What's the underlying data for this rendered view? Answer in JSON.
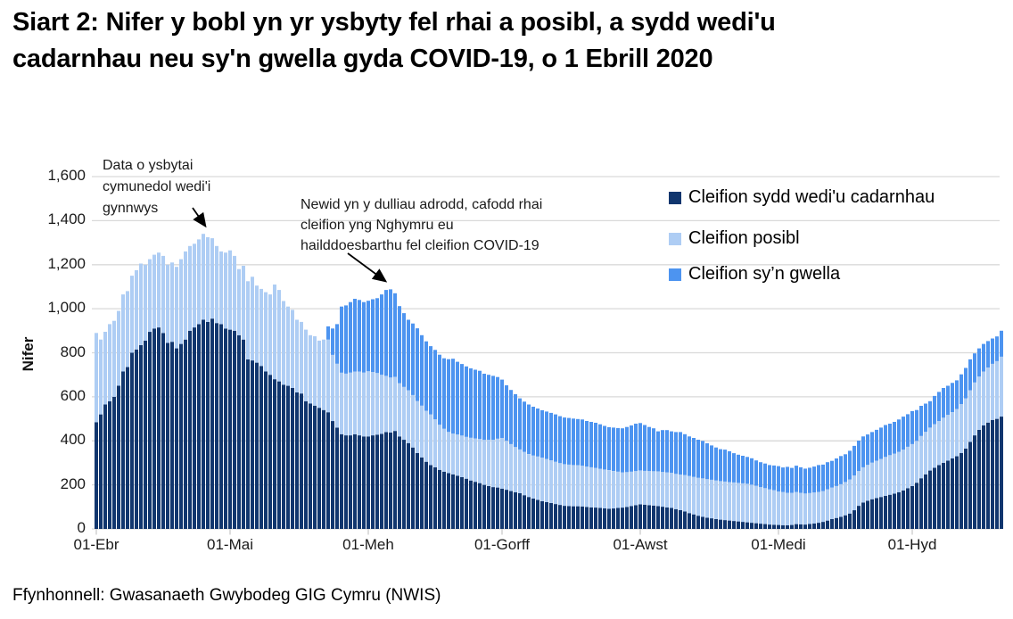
{
  "title": "Siart 2: Nifer y bobl yn yr ysbyty fel rhai a posibl, a sydd wedi'u cadarnhau neu sy'n gwella gyda COVID-19, o 1 Ebrill 2020",
  "y_axis_label": "Nifer",
  "source": "Ffynhonnell: Gwasanaeth Gwybodeg GIG Cymru (NWIS)",
  "annotations": {
    "community_hospitals": {
      "lines": [
        "Data o ysbytai",
        "cymunedol wedi'i",
        "gynnwys"
      ]
    },
    "reporting_change": {
      "lines": [
        "Newid yn y dulliau adrodd, cafodd rhai",
        "cleifion yng Nghymru eu",
        "hailddoesbarthu fel cleifion COVID-19"
      ]
    }
  },
  "chart_data": {
    "type": "bar",
    "stacked": true,
    "start_date": "01 Ebrill 2020",
    "end_date": "21 Hydref 2020",
    "x_unit": "diwrnod (daily bars)",
    "ylim": [
      0,
      1600
    ],
    "grid": "horizontal",
    "legend_position": "top-right-inside",
    "y_ticks": [
      "0",
      "200",
      "400",
      "600",
      "800",
      "1,000",
      "1,200",
      "1,400",
      "1,600"
    ],
    "x_tick_labels": [
      "01-Ebr",
      "01-Mai",
      "01-Meh",
      "01-Gorff",
      "01-Awst",
      "01-Medi",
      "01-Hyd"
    ],
    "x_tick_day_index": [
      0,
      30,
      61,
      91,
      122,
      153,
      183
    ],
    "colors": {
      "grid": "#D9D9D9",
      "tick": "#C6C6C6",
      "annotation_arrow": "#000000"
    },
    "series": [
      {
        "name": "Cleifion sydd wedi'u cadarnhau",
        "color": "#11366E",
        "values": [
          485,
          520,
          565,
          580,
          600,
          650,
          715,
          735,
          800,
          815,
          835,
          855,
          895,
          910,
          915,
          890,
          845,
          850,
          820,
          840,
          860,
          900,
          915,
          930,
          950,
          940,
          955,
          935,
          930,
          910,
          905,
          900,
          880,
          860,
          770,
          765,
          755,
          740,
          715,
          700,
          680,
          670,
          655,
          650,
          640,
          620,
          615,
          580,
          570,
          560,
          550,
          540,
          530,
          490,
          460,
          430,
          425,
          425,
          430,
          425,
          420,
          420,
          425,
          428,
          432,
          440,
          438,
          445,
          420,
          405,
          390,
          370,
          345,
          325,
          305,
          290,
          280,
          268,
          260,
          253,
          248,
          242,
          235,
          228,
          220,
          214,
          208,
          200,
          195,
          190,
          188,
          183,
          178,
          172,
          167,
          162,
          153,
          145,
          138,
          132,
          126,
          122,
          118,
          113,
          109,
          105,
          104,
          103,
          103,
          102,
          100,
          98,
          97,
          95,
          93,
          92,
          93,
          95,
          97,
          100,
          104,
          108,
          112,
          110,
          108,
          106,
          104,
          101,
          98,
          95,
          90,
          85,
          79,
          72,
          66,
          60,
          55,
          51,
          48,
          45,
          42,
          40,
          38,
          36,
          34,
          32,
          30,
          28,
          26,
          24,
          22,
          20,
          19,
          18,
          17,
          16,
          18,
          22,
          21,
          20,
          23,
          25,
          28,
          32,
          38,
          45,
          50,
          55,
          62,
          70,
          85,
          105,
          120,
          128,
          135,
          140,
          145,
          150,
          155,
          160,
          167,
          175,
          185,
          195,
          210,
          230,
          248,
          265,
          278,
          290,
          300,
          310,
          320,
          330,
          345,
          365,
          395,
          425,
          450,
          470,
          483,
          495,
          500,
          510
        ]
      },
      {
        "name": "Cleifion posibl",
        "color": "#AECDF4",
        "values": [
          405,
          340,
          330,
          350,
          345,
          340,
          350,
          345,
          350,
          360,
          370,
          345,
          330,
          335,
          340,
          350,
          355,
          360,
          370,
          385,
          400,
          385,
          380,
          385,
          390,
          385,
          365,
          350,
          330,
          345,
          360,
          340,
          300,
          335,
          355,
          380,
          350,
          350,
          360,
          365,
          430,
          415,
          380,
          360,
          355,
          330,
          325,
          325,
          310,
          315,
          305,
          320,
          330,
          300,
          290,
          280,
          280,
          285,
          285,
          290,
          290,
          296,
          288,
          280,
          268,
          255,
          250,
          245,
          242,
          240,
          240,
          238,
          236,
          235,
          232,
          230,
          218,
          205,
          195,
          188,
          185,
          187,
          189,
          190,
          194,
          197,
          200,
          205,
          210,
          215,
          222,
          230,
          222,
          213,
          205,
          199,
          197,
          195,
          196,
          197,
          198,
          196,
          194,
          192,
          190,
          189,
          188,
          187,
          186,
          185,
          183,
          182,
          180,
          178,
          177,
          175,
          170,
          165,
          160,
          158,
          156,
          155,
          154,
          154,
          155,
          156,
          157,
          158,
          159,
          160,
          160,
          162,
          165,
          168,
          170,
          172,
          175,
          175,
          175,
          175,
          175,
          175,
          175,
          175,
          175,
          175,
          175,
          173,
          170,
          166,
          163,
          160,
          157,
          152,
          150,
          148,
          146,
          145,
          143,
          141,
          140,
          140,
          140,
          140,
          142,
          143,
          145,
          148,
          151,
          155,
          157,
          158,
          160,
          163,
          166,
          170,
          173,
          177,
          180,
          182,
          183,
          185,
          188,
          190,
          190,
          192,
          193,
          195,
          198,
          200,
          205,
          208,
          210,
          215,
          222,
          228,
          235,
          240,
          242,
          245,
          250,
          255,
          262,
          272
        ]
      },
      {
        "name": "Cleifion sy’n gwella",
        "color": "#4D94F0",
        "values": [
          0,
          0,
          0,
          0,
          0,
          0,
          0,
          0,
          0,
          0,
          0,
          0,
          0,
          0,
          0,
          0,
          0,
          0,
          0,
          0,
          0,
          0,
          0,
          0,
          0,
          0,
          0,
          0,
          0,
          0,
          0,
          0,
          0,
          0,
          0,
          0,
          0,
          0,
          0,
          0,
          0,
          0,
          0,
          0,
          0,
          0,
          0,
          0,
          0,
          0,
          0,
          0,
          60,
          120,
          180,
          300,
          310,
          320,
          330,
          325,
          320,
          320,
          330,
          340,
          365,
          390,
          400,
          380,
          350,
          335,
          320,
          325,
          330,
          320,
          315,
          310,
          315,
          318,
          320,
          330,
          340,
          330,
          325,
          320,
          315,
          312,
          310,
          300,
          295,
          290,
          280,
          265,
          252,
          246,
          240,
          232,
          228,
          225,
          221,
          218,
          215,
          215,
          215,
          215,
          213,
          212,
          212,
          211,
          210,
          210,
          207,
          206,
          205,
          202,
          198,
          195,
          197,
          198,
          200,
          205,
          210,
          215,
          215,
          208,
          200,
          195,
          182,
          190,
          192,
          188,
          190,
          193,
          186,
          180,
          177,
          173,
          170,
          163,
          156,
          150,
          145,
          145,
          140,
          133,
          128,
          125,
          122,
          120,
          115,
          113,
          112,
          110,
          112,
          115,
          112,
          118,
          113,
          120,
          116,
          113,
          115,
          118,
          122,
          120,
          123,
          121,
          125,
          128,
          126,
          130,
          135,
          138,
          140,
          138,
          139,
          140,
          142,
          145,
          143,
          144,
          147,
          150,
          148,
          150,
          140,
          137,
          128,
          120,
          128,
          132,
          135,
          132,
          133,
          130,
          135,
          138,
          140,
          132,
          128,
          125,
          120,
          115,
          112,
          118
        ]
      }
    ]
  }
}
